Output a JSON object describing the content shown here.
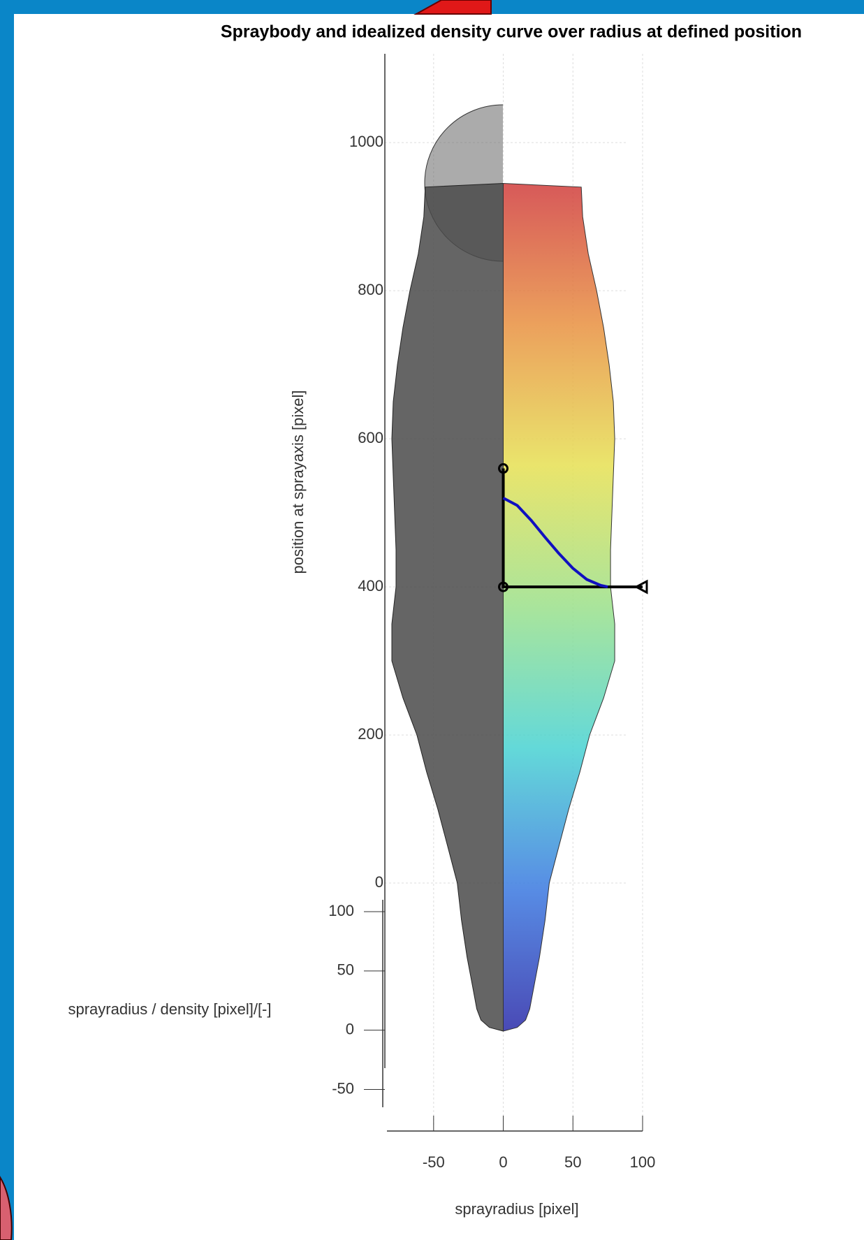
{
  "chart_data": {
    "type": "surface",
    "title": "Spraybody and idealized density curve over radius at defined position",
    "xlabel": "sprayradius [pixel]",
    "ylabel": "position at sprayaxis [pixel]",
    "zlabel": "sprayradius / density [pixel]/[-]",
    "xlim": [
      -85,
      100
    ],
    "xticks": [
      -50,
      0,
      50,
      100
    ],
    "ylim": [
      -250,
      1120
    ],
    "yticks": [
      0,
      200,
      400,
      600,
      800,
      1000
    ],
    "zlim": [
      -65,
      110
    ],
    "zticks": [
      -50,
      0,
      50,
      100
    ],
    "grid": true,
    "surface": {
      "position": [
        -200,
        -195,
        -185,
        -170,
        -140,
        -100,
        -50,
        0,
        50,
        100,
        150,
        200,
        250,
        300,
        350,
        400,
        450,
        500,
        550,
        600,
        650,
        700,
        750,
        800,
        850,
        900,
        940,
        945
      ],
      "radius": [
        0,
        10,
        16,
        19,
        22,
        26,
        30,
        33,
        40,
        47,
        55,
        62,
        72,
        80,
        80,
        77,
        77,
        78,
        79,
        80,
        79,
        76,
        72,
        67,
        61,
        57,
        56,
        0
      ],
      "colormap": [
        "#2a2aa8",
        "#3a78e0",
        "#48d2d2",
        "#9ae08a",
        "#e6e052",
        "#e89040",
        "#d03c3c"
      ],
      "shadow_color": "#4a4a4a"
    },
    "density_curve": {
      "x": [
        0,
        10,
        20,
        30,
        40,
        50,
        60,
        70,
        75
      ],
      "y": [
        520,
        510,
        490,
        467,
        445,
        425,
        410,
        402,
        400
      ],
      "color": "#1010c0"
    },
    "reference_lines": {
      "x": [
        0,
        0,
        100
      ],
      "y": [
        560,
        400,
        400
      ],
      "color": "#000000"
    }
  }
}
